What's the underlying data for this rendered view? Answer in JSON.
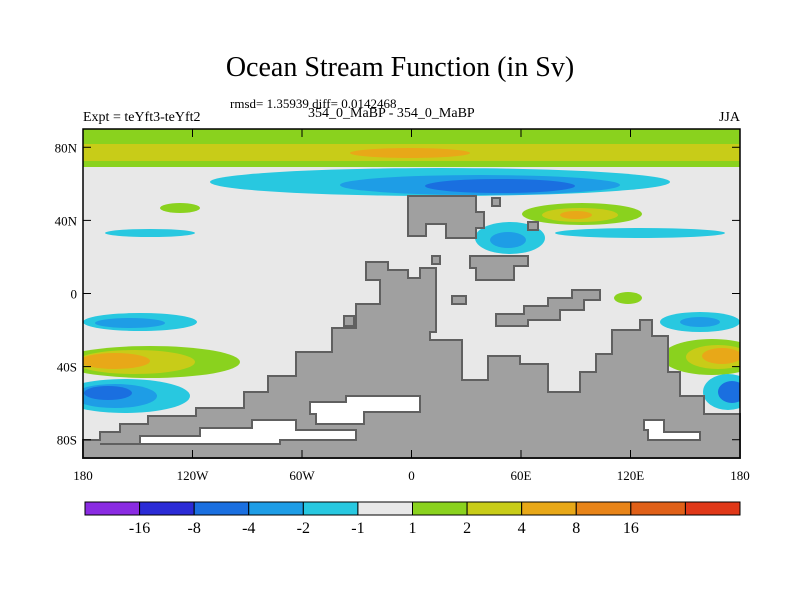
{
  "title": "Ocean Stream Function (in Sv)",
  "stats": "rmsd= 1.35939 diff= 0.0142468",
  "left_label": "Expt = teYft3-teYft2",
  "center_label": "354_0_MaBP - 354_0_MaBP",
  "right_label": "JJA",
  "map": {
    "lon_range": [
      -180,
      180
    ],
    "lat_range": [
      -90,
      90
    ],
    "y_ticks": [
      {
        "lat": 80,
        "label": "80N"
      },
      {
        "lat": 40,
        "label": "40N"
      },
      {
        "lat": 0,
        "label": "0"
      },
      {
        "lat": -40,
        "label": "40S"
      },
      {
        "lat": -80,
        "label": "80S"
      }
    ],
    "x_ticks": [
      {
        "lon": -180,
        "label": "180"
      },
      {
        "lon": -120,
        "label": "120W"
      },
      {
        "lon": -60,
        "label": "60W"
      },
      {
        "lon": 0,
        "label": "0"
      },
      {
        "lon": 60,
        "label": "60E"
      },
      {
        "lon": 120,
        "label": "120E"
      },
      {
        "lon": 180,
        "label": "180"
      }
    ]
  },
  "colorbar": {
    "colors": [
      "#8a2be2",
      "#2b2bd6",
      "#1a6fe0",
      "#1e9de6",
      "#28c8e0",
      "#e8e8e8",
      "#8ad21e",
      "#c8cc18",
      "#e8a818",
      "#e88418",
      "#e06018",
      "#e03818"
    ],
    "labels": [
      "-16",
      "-8",
      "-4",
      "-2",
      "-1",
      "1",
      "2",
      "4",
      "8",
      "16"
    ]
  },
  "colors": {
    "background_field": "#e8e8e8",
    "land": "#a0a0a0",
    "coast_outline": "#606060"
  }
}
